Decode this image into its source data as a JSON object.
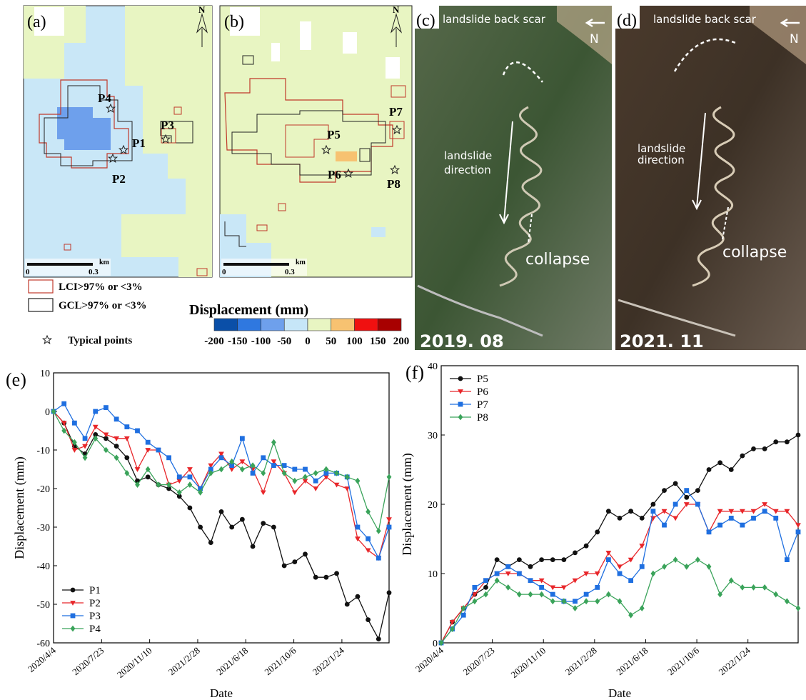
{
  "panels": {
    "a": {
      "label": "(a)",
      "points": [
        "P1",
        "P2",
        "P3",
        "P4"
      ],
      "north": "N",
      "scale_unit": "km",
      "scale_start": "0",
      "scale_end": "0.3"
    },
    "b": {
      "label": "(b)",
      "points": [
        "P5",
        "P6",
        "P7",
        "P8"
      ],
      "north": "N",
      "scale_unit": "km",
      "scale_start": "0",
      "scale_end": "0.3"
    },
    "c": {
      "label": "(c)",
      "back_scar": "landslide back scar",
      "north": "N",
      "direction": [
        "landslide",
        "direction"
      ],
      "collapse": "collapse",
      "date": "2019. 08"
    },
    "d": {
      "label": "(d)",
      "back_scar": "landslide back scar",
      "north": "N",
      "direction": [
        "landslide",
        "direction"
      ],
      "collapse": "collapse",
      "date": "2021. 11"
    },
    "legend": {
      "lci": "LCI>97% or <3%",
      "gcl": "GCL>97% or <3%",
      "points": "Typical points"
    },
    "colorbar": {
      "title": "Displacement (mm)",
      "ticks": [
        -200,
        -150,
        -100,
        -50,
        0,
        50,
        100,
        150,
        200
      ],
      "colors": [
        "#0a4fa8",
        "#2f78e0",
        "#6ea0ec",
        "#c6e6f8",
        "#e8f5c2",
        "#f7c271",
        "#f01010",
        "#a80000"
      ]
    }
  },
  "chart_data": [
    {
      "type": "line",
      "label": "(e)",
      "x_label": "Date",
      "y_label": "Displacement (mm)",
      "x": [
        "2020/4/4",
        "2020/4/28",
        "2020/5/22",
        "2020/6/15",
        "2020/7/9",
        "2020/8/2",
        "2020/8/26",
        "2020/9/19",
        "2020/10/13",
        "2020/11/6",
        "2020/11/30",
        "2020/12/24",
        "2021/1/17",
        "2021/2/10",
        "2021/3/6",
        "2021/3/30",
        "2021/4/23",
        "2021/5/17",
        "2021/6/10",
        "2021/7/4",
        "2021/7/28",
        "2021/8/21",
        "2021/9/14",
        "2021/10/8",
        "2021/11/1",
        "2021/11/25",
        "2021/12/19",
        "2022/1/12",
        "2022/2/5",
        "2022/3/1",
        "2022/3/25",
        "2022/4/18",
        "2022/5/12"
      ],
      "xlim": [
        "2020/4/4",
        "2022/5/12"
      ],
      "xticks": [
        "2020/4/4",
        "2020/7/23",
        "2020/11/10",
        "2021/2/28",
        "2021/6/18",
        "2021/10/6",
        "2022/1/24"
      ],
      "ylim": [
        -60,
        10
      ],
      "yticks": [
        -60,
        -50,
        -40,
        -30,
        -20,
        -10,
        0,
        10
      ],
      "legend": "lower left",
      "series": [
        {
          "name": "P1",
          "color": "#111111",
          "marker": "circle",
          "values": [
            0,
            -3,
            -9,
            -11,
            -6,
            -7,
            -9,
            -12,
            -18,
            -17,
            -19,
            -20,
            -22,
            -25,
            -30,
            -34,
            -26,
            -30,
            -28,
            -35,
            -29,
            -30,
            -40,
            -39,
            -37,
            -43,
            -43,
            -42,
            -50,
            -48,
            -54,
            -59,
            -47
          ]
        },
        {
          "name": "P2",
          "color": "#e8262a",
          "marker": "triangle",
          "values": [
            0,
            -3,
            -10,
            -9,
            -4,
            -6,
            -7,
            -7,
            -15,
            -10,
            -10,
            -19,
            -18,
            -15,
            -20,
            -14,
            -11,
            -15,
            -13,
            -15,
            -21,
            -13,
            -16,
            -21,
            -18,
            -20,
            -17,
            -19,
            -20,
            -33,
            -36,
            -38,
            -28
          ]
        },
        {
          "name": "P3",
          "color": "#1f6fe0",
          "marker": "square",
          "values": [
            0,
            2,
            -3,
            -7,
            0,
            1,
            -2,
            -4,
            -5,
            -8,
            -10,
            -12,
            -17,
            -17,
            -20,
            -15,
            -12,
            -14,
            -7,
            -16,
            -12,
            -14,
            -14,
            -15,
            -15,
            -18,
            -16,
            -16,
            -17,
            -30,
            -33,
            -38,
            -30
          ]
        },
        {
          "name": "P4",
          "color": "#3aa35a",
          "marker": "diamond",
          "values": [
            0,
            -5,
            -8,
            -12,
            -7,
            -10,
            -12,
            -16,
            -19,
            -15,
            -19,
            -19,
            -21,
            -19,
            -21,
            -16,
            -15,
            -13,
            -15,
            -14,
            -16,
            -8,
            -16,
            -18,
            -17,
            -16,
            -15,
            -16,
            -17,
            -18,
            -26,
            -31,
            -17
          ]
        }
      ]
    },
    {
      "type": "line",
      "label": "(f)",
      "x_label": "Date",
      "y_label": "Displacement (mm)",
      "x": [
        "2020/4/4",
        "2020/4/28",
        "2020/5/22",
        "2020/6/15",
        "2020/7/9",
        "2020/8/2",
        "2020/8/26",
        "2020/9/19",
        "2020/10/13",
        "2020/11/6",
        "2020/11/30",
        "2020/12/24",
        "2021/1/17",
        "2021/2/10",
        "2021/3/6",
        "2021/3/30",
        "2021/4/23",
        "2021/5/17",
        "2021/6/10",
        "2021/7/4",
        "2021/7/28",
        "2021/8/21",
        "2021/9/14",
        "2021/10/8",
        "2021/11/1",
        "2021/11/25",
        "2021/12/19",
        "2022/1/12",
        "2022/2/5",
        "2022/3/1",
        "2022/3/25",
        "2022/4/18",
        "2022/5/12"
      ],
      "xlim": [
        "2020/4/4",
        "2022/5/12"
      ],
      "xticks": [
        "2020/4/4",
        "2020/7/23",
        "2020/11/10",
        "2021/2/28",
        "2021/6/18",
        "2021/10/6",
        "2022/1/24"
      ],
      "ylim": [
        0,
        40
      ],
      "yticks": [
        0,
        10,
        20,
        30,
        40
      ],
      "legend": "upper left",
      "series": [
        {
          "name": "P5",
          "color": "#111111",
          "marker": "circle",
          "values": [
            0,
            3,
            5,
            7,
            8,
            12,
            11,
            12,
            11,
            12,
            12,
            12,
            13,
            14,
            16,
            19,
            18,
            19,
            18,
            20,
            22,
            23,
            21,
            22,
            25,
            26,
            25,
            27,
            28,
            28,
            29,
            29,
            30
          ]
        },
        {
          "name": "P6",
          "color": "#e8262a",
          "marker": "triangle",
          "values": [
            0,
            3,
            5,
            7,
            9,
            10,
            10,
            10,
            9,
            9,
            8,
            8,
            9,
            10,
            10,
            13,
            11,
            12,
            14,
            18,
            19,
            18,
            20,
            20,
            16,
            19,
            19,
            19,
            19,
            20,
            19,
            19,
            17
          ]
        },
        {
          "name": "P7",
          "color": "#1f6fe0",
          "marker": "square",
          "values": [
            0,
            2,
            4,
            8,
            9,
            10,
            11,
            10,
            9,
            8,
            7,
            6,
            6,
            7,
            8,
            12,
            10,
            9,
            11,
            19,
            17,
            20,
            22,
            20,
            16,
            17,
            18,
            17,
            18,
            19,
            18,
            12,
            16
          ]
        },
        {
          "name": "P8",
          "color": "#3aa35a",
          "marker": "diamond",
          "values": [
            0,
            2,
            5,
            6,
            7,
            9,
            8,
            7,
            7,
            7,
            6,
            6,
            5,
            6,
            6,
            7,
            6,
            4,
            5,
            10,
            11,
            12,
            11,
            12,
            11,
            7,
            9,
            8,
            8,
            8,
            7,
            6,
            5
          ]
        }
      ]
    }
  ]
}
